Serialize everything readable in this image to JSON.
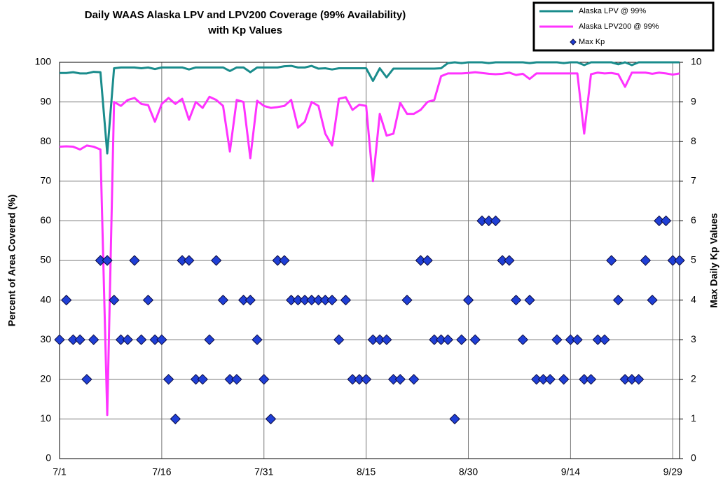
{
  "chart_data": {
    "type": "line",
    "title": [
      "Daily WAAS Alaska LPV and LPV200 Coverage (99% Availability)",
      "with Kp Values"
    ],
    "ylabel": "Percent of Area Covered (%)",
    "y2label": "Max Daily Kp Values",
    "x": [
      "7/1",
      "7/2",
      "7/3",
      "7/4",
      "7/5",
      "7/6",
      "7/7",
      "7/8",
      "7/9",
      "7/10",
      "7/11",
      "7/12",
      "7/13",
      "7/14",
      "7/15",
      "7/16",
      "7/17",
      "7/18",
      "7/19",
      "7/20",
      "7/21",
      "7/22",
      "7/23",
      "7/24",
      "7/25",
      "7/26",
      "7/27",
      "7/28",
      "7/29",
      "7/30",
      "7/31",
      "8/1",
      "8/2",
      "8/3",
      "8/4",
      "8/5",
      "8/6",
      "8/7",
      "8/8",
      "8/9",
      "8/10",
      "8/11",
      "8/12",
      "8/13",
      "8/14",
      "8/15",
      "8/16",
      "8/17",
      "8/18",
      "8/19",
      "8/20",
      "8/21",
      "8/22",
      "8/23",
      "8/24",
      "8/25",
      "8/26",
      "8/27",
      "8/28",
      "8/29",
      "8/30",
      "8/31",
      "9/1",
      "9/2",
      "9/3",
      "9/4",
      "9/5",
      "9/6",
      "9/7",
      "9/8",
      "9/9",
      "9/10",
      "9/11",
      "9/12",
      "9/13",
      "9/14",
      "9/15",
      "9/16",
      "9/17",
      "9/18",
      "9/19",
      "9/20",
      "9/21",
      "9/22",
      "9/23",
      "9/24",
      "9/25",
      "9/26",
      "9/27",
      "9/28",
      "9/29",
      "9/30"
    ],
    "xticks": [
      "7/1",
      "7/16",
      "7/31",
      "8/15",
      "8/30",
      "9/14",
      "9/29"
    ],
    "ylim": [
      0,
      100
    ],
    "yticks": [
      0,
      10,
      20,
      30,
      40,
      50,
      60,
      70,
      80,
      90,
      100
    ],
    "y2lim": [
      0,
      10
    ],
    "y2ticks": [
      0,
      1,
      2,
      3,
      4,
      5,
      6,
      7,
      8,
      9,
      10
    ],
    "grid": true,
    "legend": "top-right",
    "series": [
      {
        "name": "Alaska LPV @ 99%",
        "color": "#1a8c8c",
        "values": [
          97.3,
          97.3,
          97.5,
          97.2,
          97.2,
          97.6,
          97.5,
          77,
          98.5,
          98.7,
          98.7,
          98.7,
          98.5,
          98.7,
          98.3,
          98.7,
          98.7,
          98.7,
          98.7,
          98.2,
          98.7,
          98.7,
          98.7,
          98.7,
          98.7,
          97.8,
          98.7,
          98.7,
          97.5,
          98.7,
          98.7,
          98.7,
          98.7,
          99.0,
          99.1,
          98.7,
          98.7,
          99.1,
          98.4,
          98.5,
          98.2,
          98.5,
          98.5,
          98.5,
          98.5,
          98.5,
          95.3,
          98.5,
          96.2,
          98.4,
          98.4,
          98.4,
          98.4,
          98.4,
          98.4,
          98.4,
          98.5,
          99.8,
          100,
          99.8,
          100,
          100,
          100,
          99.8,
          100,
          100,
          100,
          100,
          100,
          99.8,
          100,
          100,
          100,
          100,
          99.8,
          100,
          100,
          99.3,
          100,
          100,
          100,
          100,
          99.5,
          100,
          99.3,
          100,
          100,
          100,
          100,
          100,
          100,
          100
        ]
      },
      {
        "name": "Alaska LPV200 @ 99%",
        "color": "#ff33ff",
        "values": [
          78.7,
          78.8,
          78.7,
          78,
          79,
          78.7,
          78,
          11,
          90,
          89,
          90.5,
          91,
          89.5,
          89.2,
          85,
          89.5,
          91,
          89.5,
          90.8,
          85.5,
          90,
          88.5,
          91.3,
          90.5,
          89,
          77.5,
          90.5,
          90,
          75.8,
          90.3,
          89,
          88.5,
          88.7,
          89,
          90.5,
          83.5,
          85,
          90,
          89,
          82,
          79,
          90.8,
          91.2,
          88,
          89.3,
          89,
          70,
          87,
          81.5,
          82,
          89.8,
          87,
          87,
          88,
          90,
          90.5,
          96.5,
          97.2,
          97.2,
          97.2,
          97.3,
          97.5,
          97.3,
          97.1,
          97,
          97.1,
          97.4,
          96.8,
          97.1,
          95.8,
          97.2,
          97.2,
          97.2,
          97.2,
          97.2,
          97.2,
          97.2,
          82,
          97,
          97.4,
          97.2,
          97.3,
          97,
          93.8,
          97.4,
          97.4,
          97.4,
          97.1,
          97.4,
          97.2,
          96.9,
          97.2
        ]
      },
      {
        "name": "Max Kp",
        "color": "#1f3fd6",
        "axis": "y2",
        "marker": "diamond",
        "values": [
          3,
          4,
          3,
          3,
          2,
          3,
          5,
          5,
          4,
          3,
          3,
          5,
          3,
          4,
          3,
          3,
          2,
          1,
          5,
          5,
          2,
          2,
          3,
          5,
          4,
          2,
          2,
          4,
          4,
          3,
          2,
          1,
          5,
          5,
          4,
          4,
          4,
          4,
          4,
          4,
          4,
          3,
          4,
          2,
          2,
          2,
          3,
          3,
          3,
          2,
          2,
          4,
          2,
          5,
          5,
          3,
          3,
          3,
          1,
          3,
          4,
          3,
          6,
          6,
          6,
          5,
          5,
          4,
          3,
          4,
          2,
          2,
          2,
          3,
          2,
          3,
          3,
          2,
          2,
          3,
          3,
          5,
          4,
          2,
          2,
          2,
          5,
          4,
          6,
          6,
          5,
          5
        ]
      }
    ]
  }
}
